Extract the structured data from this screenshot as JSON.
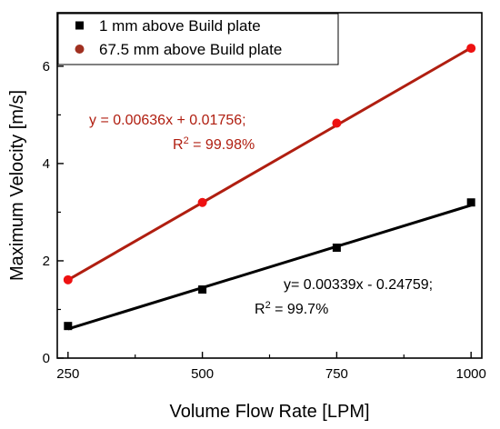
{
  "chart_data": {
    "type": "scatter",
    "xlabel": "Volume Flow Rate [LPM]",
    "ylabel": "Maximum Velocity [m/s]",
    "xlim": [
      230,
      1020
    ],
    "ylim": [
      0,
      7.1
    ],
    "xticks": [
      250,
      500,
      750,
      1000
    ],
    "yticks": [
      0,
      2,
      4,
      6
    ],
    "grid": false,
    "legend_position": "top-left",
    "series": [
      {
        "name": "1 mm above Build plate",
        "marker": "square",
        "color": "#000000",
        "line_color": "#000000",
        "x": [
          250,
          500,
          750,
          1000
        ],
        "y": [
          0.66,
          1.41,
          2.27,
          3.2
        ],
        "fit": {
          "slope": 0.00339,
          "intercept": -0.24759
        }
      },
      {
        "name": "67.5 mm above Build plate",
        "marker": "circle",
        "color": "#ee1111",
        "line_color": "#b01e10",
        "legend_color": "#a03020",
        "x": [
          250,
          500,
          750,
          1000
        ],
        "y": [
          1.61,
          3.2,
          4.83,
          6.37
        ],
        "fit": {
          "slope": 0.00636,
          "intercept": 0.01756
        }
      }
    ],
    "annotations": [
      {
        "text": "y = 0.00636x + 0.01756;",
        "r2_label": "R",
        "r2_sup": "2",
        "r2_value": " = 99.98%",
        "color": "#b01e10"
      },
      {
        "text": "y= 0.00339x - 0.24759;",
        "r2_label": "R",
        "r2_sup": "2",
        "r2_value": " = 99.7%",
        "color": "#000000"
      }
    ]
  }
}
